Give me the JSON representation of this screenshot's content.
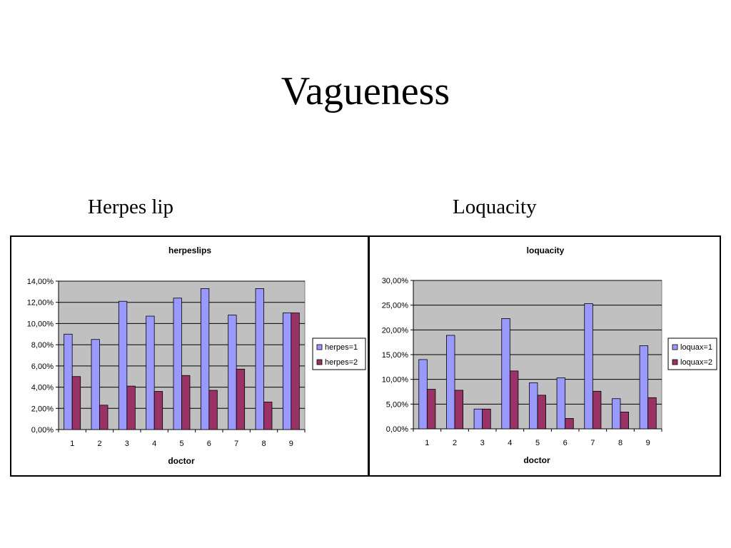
{
  "slide": {
    "title": "Vagueness",
    "left_caption": "Herpes lip",
    "right_caption": "Loquacity"
  },
  "colors": {
    "series1": "#9999ff",
    "series2": "#993366",
    "plot_bg": "#c0c0c0",
    "gridline": "#000000"
  },
  "chart_data": [
    {
      "type": "bar",
      "title": "herpeslips",
      "xlabel": "doctor",
      "ylabel": "",
      "categories": [
        "1",
        "2",
        "3",
        "4",
        "5",
        "6",
        "7",
        "8",
        "9"
      ],
      "series": [
        {
          "name": "herpes=1",
          "values": [
            9.0,
            8.5,
            12.1,
            10.7,
            12.4,
            13.3,
            10.8,
            13.3,
            11.0
          ]
        },
        {
          "name": "herpes=2",
          "values": [
            5.0,
            2.3,
            4.1,
            3.6,
            5.1,
            3.7,
            5.7,
            2.6,
            11.0
          ]
        }
      ],
      "ylim": [
        0,
        14
      ],
      "yticks": [
        0,
        2,
        4,
        6,
        8,
        10,
        12,
        14
      ],
      "ytick_labels": [
        "0,00%",
        "2,00%",
        "4,00%",
        "6,00%",
        "8,00%",
        "10,00%",
        "12,00%",
        "14,00%"
      ],
      "grid": true,
      "legend": "right"
    },
    {
      "type": "bar",
      "title": "loquacity",
      "xlabel": "doctor",
      "ylabel": "",
      "categories": [
        "1",
        "2",
        "3",
        "4",
        "5",
        "6",
        "7",
        "8",
        "9"
      ],
      "series": [
        {
          "name": "loquax=1",
          "values": [
            14.0,
            18.9,
            4.0,
            22.3,
            9.3,
            10.3,
            25.3,
            6.1,
            16.8
          ]
        },
        {
          "name": "loquax=2",
          "values": [
            8.0,
            7.8,
            4.0,
            11.7,
            6.8,
            2.1,
            7.6,
            3.4,
            6.3
          ]
        }
      ],
      "ylim": [
        0,
        30
      ],
      "yticks": [
        0,
        5,
        10,
        15,
        20,
        25,
        30
      ],
      "ytick_labels": [
        "0,00%",
        "5,00%",
        "10,00%",
        "15,00%",
        "20,00%",
        "25,00%",
        "30,00%"
      ],
      "grid": true,
      "legend": "right"
    }
  ]
}
